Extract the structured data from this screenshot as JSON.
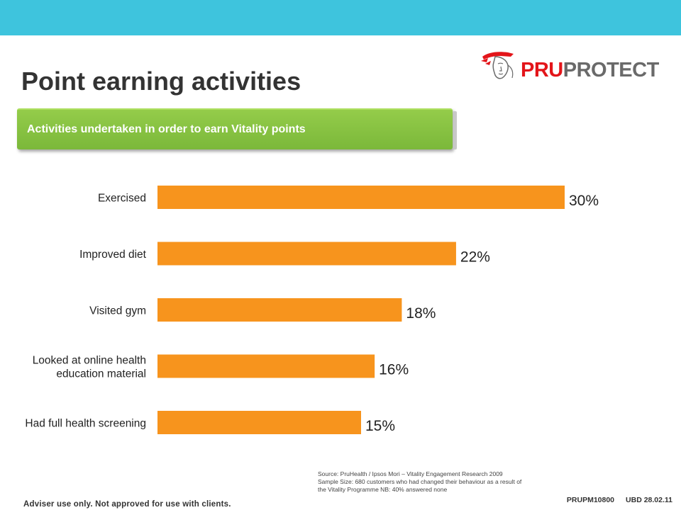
{
  "header": {
    "title": "Point earning activities",
    "logo_text_a": "PRU",
    "logo_text_b": "PROTECT"
  },
  "banner": {
    "text": "Activities undertaken in order to earn Vitality points"
  },
  "chart_data": {
    "type": "bar",
    "orientation": "horizontal",
    "title": "Activities undertaken in order to earn Vitality points",
    "categories": [
      "Exercised",
      "Improved diet",
      "Visited gym",
      "Looked at online health education material",
      "Had full health screening"
    ],
    "category_lines": [
      [
        "Exercised"
      ],
      [
        "Improved diet"
      ],
      [
        "Visited gym"
      ],
      [
        "Looked at online health",
        "education material"
      ],
      [
        "Had full health screening"
      ]
    ],
    "values": [
      30,
      22,
      18,
      16,
      15
    ],
    "value_labels": [
      "30%",
      "22%",
      "18%",
      "16%",
      "15%"
    ],
    "xlim": [
      0,
      30
    ],
    "grid": false,
    "legend": "none",
    "bar_color": "#f7941d"
  },
  "source": {
    "line1": "Source: PruHealth / Ipsos Mori – Vitality Engagement Research 2009",
    "line2": "Sample Size: 680 customers who had changed their behaviour as a result of",
    "line3": "the Vitality Programme NB: 40% answered none"
  },
  "footer": {
    "disclaimer": "Adviser use only. Not approved for use with clients.",
    "code": "PRUPM10800",
    "date": "UBD 28.02.11"
  },
  "colors": {
    "top_bar": "#3ec4dd",
    "banner": "#8cc63f",
    "bar": "#f7941d",
    "brand_red": "#e3151a",
    "brand_grey": "#6a6a6a"
  }
}
